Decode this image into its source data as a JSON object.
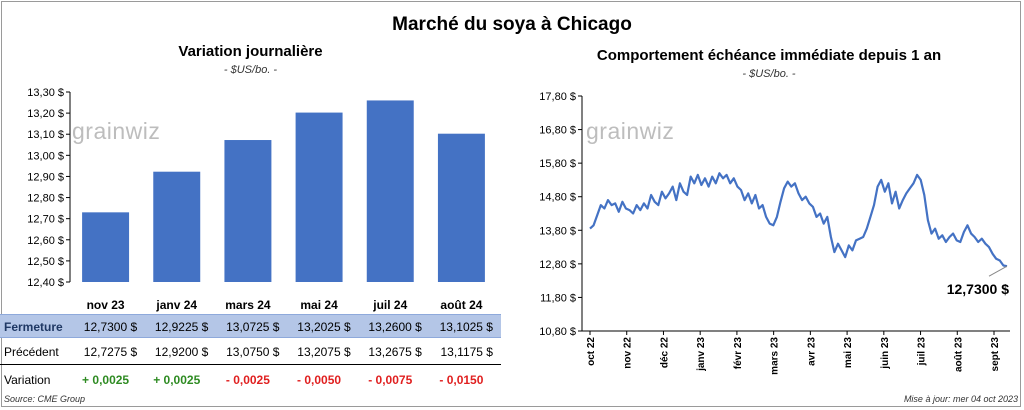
{
  "title": "Marché du soya à Chicago",
  "left_chart": {
    "title": "Variation  journalière",
    "subtitle": "- $US/bo. -"
  },
  "right_chart": {
    "title": "Comportement  échéance immédiate depuis 1 an",
    "subtitle": "- $US/bo. -",
    "last_value_label": "12,7300 $"
  },
  "watermark": "grainwiz",
  "table": {
    "rows": [
      {
        "label": "Fermeture",
        "cells": [
          "12,7300  $",
          "12,9225  $",
          "13,0725  $",
          "13,2025  $",
          "13,2600  $",
          "13,1025  $"
        ]
      },
      {
        "label": "Précédent",
        "cells": [
          "12,7275  $",
          "12,9200  $",
          "13,0750  $",
          "13,2075  $",
          "13,2675  $",
          "13,1175  $"
        ]
      },
      {
        "label": "Variation",
        "cells": [
          "+ 0,0025",
          "+ 0,0025",
          "- 0,0025",
          "- 0,0050",
          "- 0,0075",
          "- 0,0150"
        ]
      }
    ],
    "variation_signs": [
      "pos",
      "pos",
      "neg",
      "neg",
      "neg",
      "neg"
    ]
  },
  "footer": {
    "source": "Source: CME Group",
    "updated": "Mise à jour: mer 04 oct 2023"
  },
  "chart_data": [
    {
      "type": "bar",
      "categories": [
        "nov 23",
        "janv 24",
        "mars 24",
        "mai 24",
        "juil 24",
        "août 24"
      ],
      "values": [
        12.73,
        12.9225,
        13.0725,
        13.2025,
        13.26,
        13.1025
      ],
      "ylim": [
        12.4,
        13.3
      ],
      "yticks": [
        "12,40 $",
        "12,50 $",
        "12,60 $",
        "12,70 $",
        "12,80 $",
        "12,90 $",
        "13,00 $",
        "13,10 $",
        "13,20 $",
        "13,30 $"
      ],
      "grid": false,
      "color": "#4472c4"
    },
    {
      "type": "line",
      "x_labels": [
        "oct 22",
        "nov 22",
        "déc 22",
        "janv 23",
        "févr 23",
        "mars 23",
        "avr 23",
        "mai 23",
        "juin 23",
        "juil 23",
        "août 23",
        "sept 23"
      ],
      "ylim": [
        10.8,
        17.8
      ],
      "yticks": [
        "10,80 $",
        "11,80 $",
        "12,80 $",
        "13,80 $",
        "14,80 $",
        "15,80 $",
        "16,80 $",
        "17,80 $"
      ],
      "grid": false,
      "color": "#4472c4",
      "values": [
        13.85,
        13.95,
        14.25,
        14.55,
        14.45,
        14.7,
        14.55,
        14.6,
        14.35,
        14.65,
        14.45,
        14.4,
        14.3,
        14.55,
        14.4,
        14.6,
        14.45,
        14.85,
        14.65,
        14.55,
        14.95,
        14.75,
        14.9,
        15.1,
        14.7,
        15.2,
        14.95,
        14.85,
        15.4,
        15.2,
        15.45,
        15.15,
        15.35,
        15.1,
        15.4,
        15.2,
        15.5,
        15.35,
        15.45,
        15.2,
        15.35,
        15.1,
        15.0,
        14.7,
        14.9,
        14.6,
        14.85,
        14.45,
        14.55,
        14.2,
        14.0,
        13.95,
        14.2,
        14.65,
        15.05,
        15.25,
        15.1,
        15.2,
        14.9,
        14.7,
        14.8,
        14.6,
        14.5,
        14.2,
        14.3,
        14.0,
        14.2,
        13.6,
        13.15,
        13.4,
        13.2,
        13.0,
        13.35,
        13.2,
        13.5,
        13.55,
        13.6,
        13.85,
        14.2,
        14.55,
        15.1,
        15.3,
        14.95,
        15.2,
        14.6,
        14.95,
        14.45,
        14.7,
        14.9,
        15.05,
        15.2,
        15.45,
        15.3,
        14.85,
        14.1,
        13.7,
        13.85,
        13.55,
        13.65,
        13.45,
        13.6,
        13.7,
        13.5,
        13.45,
        13.75,
        13.95,
        13.7,
        13.6,
        13.45,
        13.55,
        13.4,
        13.3,
        13.1,
        12.95,
        12.9,
        12.75,
        12.73
      ]
    }
  ]
}
